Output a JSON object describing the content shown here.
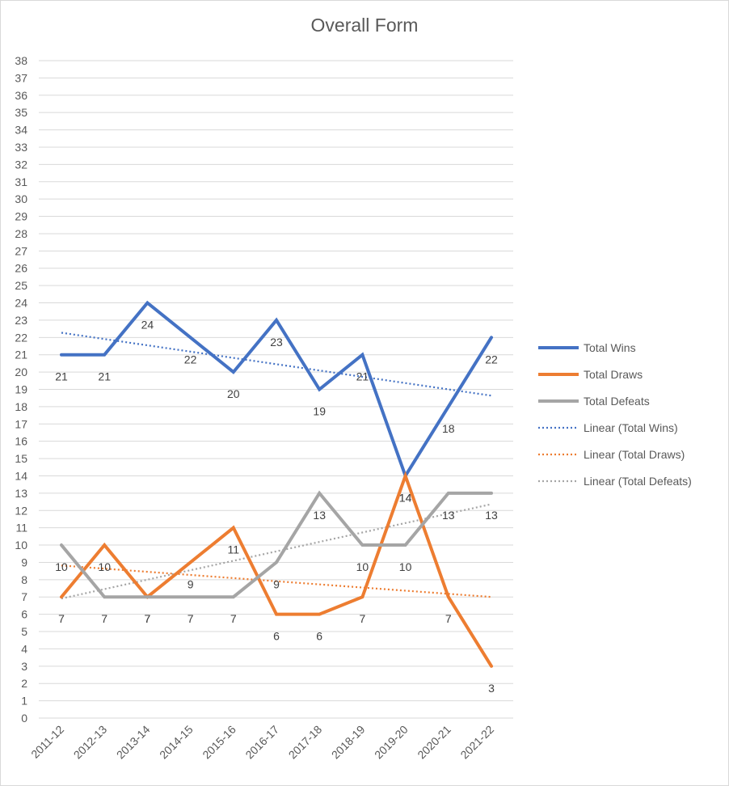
{
  "chart_data": {
    "type": "line",
    "title": "Overall Form",
    "categories": [
      "2011-12",
      "2012-13",
      "2013-14",
      "2014-15",
      "2015-16",
      "2016-17",
      "2017-18",
      "2018-19",
      "2019-20",
      "2020-21",
      "2021-22"
    ],
    "ylim": [
      0,
      38
    ],
    "ytick_step": 1,
    "grid": true,
    "legend_position": "right",
    "data_labels": true,
    "series": [
      {
        "name": "Total Wins",
        "color": "#4472C4",
        "values": [
          21,
          21,
          24,
          22,
          20,
          23,
          19,
          21,
          14,
          18,
          22
        ]
      },
      {
        "name": "Total Draws",
        "color": "#ED7D31",
        "values": [
          7,
          10,
          7,
          9,
          11,
          6,
          6,
          7,
          14,
          7,
          3
        ]
      },
      {
        "name": "Total Defeats",
        "color": "#A5A5A5",
        "values": [
          10,
          7,
          7,
          7,
          7,
          9,
          13,
          10,
          10,
          13,
          13
        ]
      }
    ],
    "trendlines": [
      {
        "name": "Linear (Total Wins)",
        "color": "#4472C4",
        "type": "linear",
        "of": "Total Wins"
      },
      {
        "name": "Linear (Total Draws)",
        "color": "#ED7D31",
        "type": "linear",
        "of": "Total Draws"
      },
      {
        "name": "Linear (Total Defeats)",
        "color": "#A5A5A5",
        "type": "linear",
        "of": "Total Defeats"
      }
    ]
  }
}
